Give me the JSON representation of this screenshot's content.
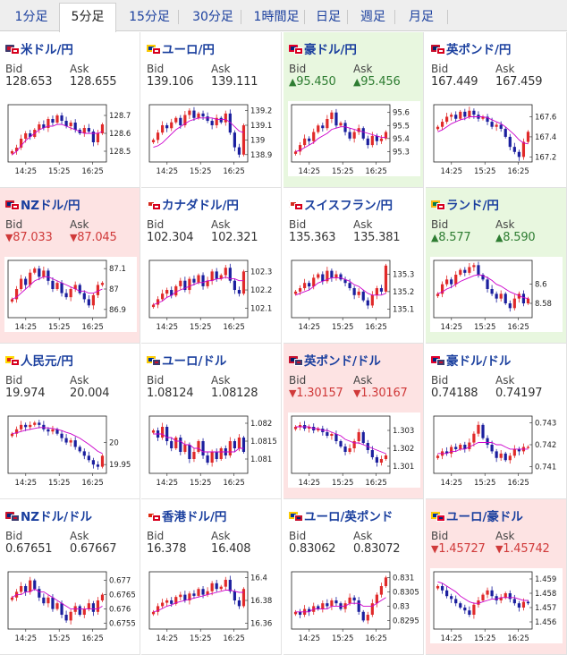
{
  "tabs": [
    {
      "label": "1分足",
      "active": false
    },
    {
      "label": "5分足",
      "active": true
    },
    {
      "label": "15分足",
      "active": false
    },
    {
      "label": "30分足",
      "active": false
    },
    {
      "label": "1時間足",
      "active": false
    },
    {
      "label": "日足",
      "active": false
    },
    {
      "label": "週足",
      "active": false
    },
    {
      "label": "月足",
      "active": false
    }
  ],
  "bid_label": "Bid",
  "ask_label": "Ask",
  "colors": {
    "candle_up": "#e02a2a",
    "candle_down": "#1b1f9e",
    "moving_average": "#cc00cc",
    "text_up": "#2e7d32",
    "text_down": "#d03a3a"
  },
  "chart_data": [
    {
      "type": "candlestick",
      "pair": "米ドル/円",
      "flags": [
        "US",
        "JP"
      ],
      "bid": "128.653",
      "ask": "128.655",
      "trend": "",
      "cell_bg": "",
      "x_ticks": [
        "14:25",
        "15:25",
        "16:25"
      ],
      "y_ticks": [
        "128.7",
        "128.6",
        "128.5"
      ],
      "ylim": [
        128.44,
        128.76
      ],
      "closes": [
        128.5,
        128.52,
        128.57,
        128.6,
        128.58,
        128.62,
        128.65,
        128.63,
        128.68,
        128.66,
        128.7,
        128.67,
        128.64,
        128.66,
        128.62,
        128.6,
        128.63,
        128.61,
        128.55,
        128.6,
        128.65
      ],
      "ma": [
        128.48,
        128.5,
        128.53,
        128.56,
        128.58,
        128.6,
        128.62,
        128.63,
        128.64,
        128.64,
        128.65,
        128.65,
        128.64,
        128.63,
        128.62,
        128.61,
        128.6,
        128.6,
        128.6,
        128.6,
        128.61
      ]
    },
    {
      "type": "candlestick",
      "pair": "ユーロ/円",
      "flags": [
        "EU",
        "JP"
      ],
      "bid": "139.106",
      "ask": "139.111",
      "trend": "",
      "cell_bg": "",
      "x_ticks": [
        "14:25",
        "15:25",
        "16:25"
      ],
      "y_ticks": [
        "139.2",
        "139.1",
        "139",
        "138.9"
      ],
      "ylim": [
        138.85,
        139.24
      ],
      "closes": [
        139.0,
        139.05,
        139.1,
        139.08,
        139.12,
        139.15,
        139.1,
        139.17,
        139.2,
        139.15,
        139.18,
        139.16,
        139.13,
        139.1,
        139.15,
        139.12,
        139.18,
        139.05,
        138.95,
        138.9,
        139.1
      ],
      "ma": [
        138.95,
        138.96,
        138.98,
        139.01,
        139.04,
        139.07,
        139.09,
        139.11,
        139.13,
        139.14,
        139.15,
        139.15,
        139.15,
        139.15,
        139.14,
        139.14,
        139.14,
        139.12,
        139.09,
        139.06,
        139.05
      ]
    },
    {
      "type": "candlestick",
      "pair": "豪ドル/円",
      "flags": [
        "AU",
        "JP"
      ],
      "bid": "95.450",
      "ask": "95.456",
      "trend": "up",
      "cell_bg": "green",
      "x_ticks": [
        "14:25",
        "15:25",
        "16:25"
      ],
      "y_ticks": [
        "95.6",
        "95.5",
        "95.4",
        "95.3"
      ],
      "ylim": [
        95.22,
        95.66
      ],
      "closes": [
        95.3,
        95.35,
        95.4,
        95.38,
        95.45,
        95.5,
        95.48,
        95.55,
        95.6,
        95.5,
        95.52,
        95.45,
        95.4,
        95.45,
        95.48,
        95.4,
        95.35,
        95.42,
        95.38,
        95.4,
        95.45
      ],
      "ma": [
        95.3,
        95.31,
        95.33,
        95.35,
        95.37,
        95.4,
        95.42,
        95.44,
        95.47,
        95.48,
        95.49,
        95.49,
        95.48,
        95.47,
        95.46,
        95.45,
        95.44,
        95.43,
        95.42,
        95.41,
        95.41
      ]
    },
    {
      "type": "candlestick",
      "pair": "英ポンド/円",
      "flags": [
        "GB",
        "JP"
      ],
      "bid": "167.449",
      "ask": "167.459",
      "trend": "",
      "cell_bg": "",
      "x_ticks": [
        "14:25",
        "15:25",
        "16:25"
      ],
      "y_ticks": [
        "167.6",
        "167.4",
        "167.2"
      ],
      "ylim": [
        167.15,
        167.72
      ],
      "closes": [
        167.5,
        167.55,
        167.6,
        167.62,
        167.58,
        167.65,
        167.6,
        167.66,
        167.62,
        167.58,
        167.6,
        167.55,
        167.5,
        167.52,
        167.48,
        167.4,
        167.3,
        167.25,
        167.2,
        167.35,
        167.45
      ],
      "ma": [
        167.45,
        167.47,
        167.5,
        167.53,
        167.55,
        167.57,
        167.58,
        167.6,
        167.6,
        167.6,
        167.6,
        167.59,
        167.57,
        167.55,
        167.53,
        167.5,
        167.46,
        167.42,
        167.37,
        167.34,
        167.33
      ]
    },
    {
      "type": "candlestick",
      "pair": "NZドル/円",
      "flags": [
        "NZ",
        "JP"
      ],
      "bid": "87.033",
      "ask": "87.045",
      "trend": "down",
      "cell_bg": "red",
      "x_ticks": [
        "14:25",
        "15:25",
        "16:25"
      ],
      "y_ticks": [
        "87.1",
        "87",
        "86.9"
      ],
      "ylim": [
        86.86,
        87.14
      ],
      "closes": [
        86.95,
        87.0,
        87.05,
        87.02,
        87.08,
        87.1,
        87.06,
        87.09,
        87.04,
        87.0,
        87.03,
        86.98,
        86.96,
        87.0,
        87.02,
        86.98,
        86.95,
        86.92,
        86.97,
        87.02,
        87.03
      ],
      "ma": [
        86.95,
        86.96,
        86.98,
        87.0,
        87.02,
        87.04,
        87.05,
        87.06,
        87.06,
        87.05,
        87.04,
        87.03,
        87.02,
        87.01,
        87.0,
        86.99,
        86.99,
        86.98,
        86.98,
        86.99,
        87.0
      ]
    },
    {
      "type": "candlestick",
      "pair": "カナダドル/円",
      "flags": [
        "CA",
        "JP"
      ],
      "bid": "102.304",
      "ask": "102.321",
      "trend": "",
      "cell_bg": "",
      "x_ticks": [
        "14:25",
        "15:25",
        "16:25"
      ],
      "y_ticks": [
        "102.3",
        "102.2",
        "102.1"
      ],
      "ylim": [
        102.05,
        102.36
      ],
      "closes": [
        102.12,
        102.15,
        102.18,
        102.2,
        102.17,
        102.22,
        102.25,
        102.2,
        102.26,
        102.24,
        102.28,
        102.22,
        102.25,
        102.3,
        102.26,
        102.28,
        102.32,
        102.25,
        102.2,
        102.18,
        102.3
      ],
      "ma": [
        102.12,
        102.13,
        102.14,
        102.16,
        102.17,
        102.19,
        102.2,
        102.21,
        102.22,
        102.23,
        102.24,
        102.24,
        102.25,
        102.25,
        102.26,
        102.26,
        102.27,
        102.26,
        102.26,
        102.25,
        102.25
      ]
    },
    {
      "type": "candlestick",
      "pair": "スイスフラン/円",
      "flags": [
        "CH",
        "JP"
      ],
      "bid": "135.363",
      "ask": "135.381",
      "trend": "",
      "cell_bg": "",
      "x_ticks": [
        "14:25",
        "15:25",
        "16:25"
      ],
      "y_ticks": [
        "135.3",
        "135.2",
        "135.1"
      ],
      "ylim": [
        135.05,
        135.38
      ],
      "closes": [
        135.2,
        135.22,
        135.25,
        135.23,
        135.28,
        135.3,
        135.26,
        135.32,
        135.28,
        135.3,
        135.27,
        135.25,
        135.22,
        135.18,
        135.2,
        135.15,
        135.12,
        135.18,
        135.22,
        135.2,
        135.35
      ],
      "ma": [
        135.18,
        135.19,
        135.2,
        135.21,
        135.23,
        135.25,
        135.26,
        135.27,
        135.28,
        135.28,
        135.28,
        135.27,
        135.26,
        135.24,
        135.23,
        135.21,
        135.19,
        135.18,
        135.18,
        135.18,
        135.19
      ]
    },
    {
      "type": "candlestick",
      "pair": "ランド/円",
      "flags": [
        "ZA",
        "JP"
      ],
      "bid": "8.577",
      "ask": "8.590",
      "trend": "up",
      "cell_bg": "green",
      "x_ticks": [
        "14:25",
        "15:25",
        "16:25"
      ],
      "y_ticks": [
        "8.6",
        "8.58"
      ],
      "ylim": [
        8.565,
        8.625
      ],
      "closes": [
        8.59,
        8.6,
        8.605,
        8.6,
        8.61,
        8.615,
        8.612,
        8.618,
        8.62,
        8.61,
        8.605,
        8.595,
        8.59,
        8.585,
        8.59,
        8.58,
        8.575,
        8.585,
        8.59,
        8.58,
        8.585
      ],
      "ma": [
        8.59,
        8.592,
        8.595,
        8.597,
        8.6,
        8.603,
        8.605,
        8.607,
        8.609,
        8.61,
        8.609,
        8.607,
        8.604,
        8.6,
        8.598,
        8.595,
        8.592,
        8.59,
        8.588,
        8.586,
        8.585
      ]
    },
    {
      "type": "candlestick",
      "pair": "人民元/円",
      "flags": [
        "CN",
        "JP"
      ],
      "bid": "19.974",
      "ask": "20.004",
      "trend": "",
      "cell_bg": "",
      "x_ticks": [
        "14:25",
        "15:25",
        "16:25"
      ],
      "y_ticks": [
        "20",
        "19.95"
      ],
      "ylim": [
        19.93,
        20.06
      ],
      "closes": [
        20.02,
        20.03,
        20.04,
        20.035,
        20.04,
        20.045,
        20.04,
        20.03,
        20.025,
        20.03,
        20.02,
        20.01,
        20.0,
        20.005,
        19.99,
        19.98,
        19.97,
        19.96,
        19.95,
        19.945,
        19.97
      ],
      "ma": [
        20.02,
        20.022,
        20.025,
        20.028,
        20.03,
        20.032,
        20.034,
        20.034,
        20.033,
        20.032,
        20.03,
        20.027,
        20.023,
        20.02,
        20.015,
        20.01,
        20.003,
        19.996,
        19.988,
        19.98,
        19.975
      ]
    },
    {
      "type": "candlestick",
      "pair": "ユーロ/ドル",
      "flags": [
        "EU",
        "US"
      ],
      "bid": "1.08124",
      "ask": "1.08128",
      "trend": "",
      "cell_bg": "",
      "x_ticks": [
        "14:25",
        "15:25",
        "16:25"
      ],
      "y_ticks": [
        "1.082",
        "1.0815",
        "1.081"
      ],
      "ylim": [
        1.0806,
        1.0822
      ],
      "closes": [
        1.0818,
        1.0816,
        1.0819,
        1.0815,
        1.0813,
        1.0816,
        1.0812,
        1.0814,
        1.081,
        1.0812,
        1.0815,
        1.0811,
        1.0809,
        1.0812,
        1.081,
        1.0813,
        1.0811,
        1.0815,
        1.0813,
        1.0816,
        1.0812
      ],
      "ma": [
        1.0817,
        1.0817,
        1.0817,
        1.0816,
        1.0816,
        1.0815,
        1.0815,
        1.0814,
        1.0814,
        1.0813,
        1.0813,
        1.0812,
        1.0812,
        1.0812,
        1.0812,
        1.0812,
        1.0812,
        1.0812,
        1.0812,
        1.0813,
        1.0813
      ]
    },
    {
      "type": "candlestick",
      "pair": "英ポンド/ドル",
      "flags": [
        "GB",
        "US"
      ],
      "bid": "1.30157",
      "ask": "1.30167",
      "trend": "down",
      "cell_bg": "red",
      "x_ticks": [
        "14:25",
        "15:25",
        "16:25"
      ],
      "y_ticks": [
        "1.303",
        "1.302",
        "1.301"
      ],
      "ylim": [
        1.3006,
        1.3038
      ],
      "closes": [
        1.3032,
        1.3033,
        1.3031,
        1.3032,
        1.303,
        1.3031,
        1.3029,
        1.3027,
        1.3028,
        1.3024,
        1.3021,
        1.3018,
        1.302,
        1.3024,
        1.3029,
        1.3023,
        1.3019,
        1.3015,
        1.3012,
        1.3014,
        1.3016
      ],
      "ma": [
        1.3032,
        1.3032,
        1.3032,
        1.3032,
        1.3031,
        1.3031,
        1.303,
        1.303,
        1.3029,
        1.3028,
        1.3027,
        1.3025,
        1.3024,
        1.3023,
        1.3023,
        1.3022,
        1.3021,
        1.302,
        1.3019,
        1.3018,
        1.3017
      ]
    },
    {
      "type": "candlestick",
      "pair": "豪ドル/ドル",
      "flags": [
        "AU",
        "US"
      ],
      "bid": "0.74188",
      "ask": "0.74197",
      "trend": "",
      "cell_bg": "",
      "x_ticks": [
        "14:25",
        "15:25",
        "16:25"
      ],
      "y_ticks": [
        "0.743",
        "0.742",
        "0.741"
      ],
      "ylim": [
        0.7407,
        0.7433
      ],
      "closes": [
        0.7415,
        0.7417,
        0.7416,
        0.7419,
        0.7418,
        0.742,
        0.7418,
        0.7421,
        0.7425,
        0.7429,
        0.7423,
        0.742,
        0.7417,
        0.7414,
        0.7416,
        0.7413,
        0.7415,
        0.7418,
        0.7417,
        0.7419,
        0.7419
      ],
      "ma": [
        0.7416,
        0.7416,
        0.7416,
        0.7417,
        0.7417,
        0.7418,
        0.7418,
        0.7419,
        0.742,
        0.7421,
        0.7421,
        0.7421,
        0.7421,
        0.742,
        0.742,
        0.7419,
        0.7418,
        0.7418,
        0.7418,
        0.7418,
        0.7418
      ]
    },
    {
      "type": "candlestick",
      "pair": "NZドル/ドル",
      "flags": [
        "NZ",
        "US"
      ],
      "bid": "0.67651",
      "ask": "0.67667",
      "trend": "",
      "cell_bg": "",
      "x_ticks": [
        "14:25",
        "15:25",
        "16:25"
      ],
      "y_ticks": [
        "0.677",
        "0.6765",
        "0.676",
        "0.6755"
      ],
      "ylim": [
        0.6753,
        0.6773
      ],
      "closes": [
        0.6764,
        0.6766,
        0.6768,
        0.6766,
        0.677,
        0.6767,
        0.6764,
        0.6762,
        0.6764,
        0.676,
        0.6762,
        0.6758,
        0.6756,
        0.6759,
        0.6761,
        0.6758,
        0.676,
        0.6762,
        0.6759,
        0.6763,
        0.6765
      ],
      "ma": [
        0.6764,
        0.6765,
        0.6765,
        0.6766,
        0.6766,
        0.6767,
        0.6766,
        0.6766,
        0.6765,
        0.6764,
        0.6763,
        0.6762,
        0.6761,
        0.676,
        0.676,
        0.676,
        0.676,
        0.676,
        0.676,
        0.676,
        0.6761
      ]
    },
    {
      "type": "candlestick",
      "pair": "香港ドル/円",
      "flags": [
        "HK",
        "JP"
      ],
      "bid": "16.378",
      "ask": "16.408",
      "trend": "",
      "cell_bg": "",
      "x_ticks": [
        "14:25",
        "15:25",
        "16:25"
      ],
      "y_ticks": [
        "16.4",
        "16.38",
        "16.36"
      ],
      "ylim": [
        16.355,
        16.405
      ],
      "closes": [
        16.37,
        16.375,
        16.378,
        16.38,
        16.377,
        16.383,
        16.385,
        16.38,
        16.386,
        16.384,
        16.39,
        16.385,
        16.388,
        16.395,
        16.39,
        16.392,
        16.398,
        16.388,
        16.38,
        16.375,
        16.39
      ],
      "ma": [
        16.37,
        16.371,
        16.373,
        16.375,
        16.376,
        16.378,
        16.379,
        16.38,
        16.381,
        16.382,
        16.383,
        16.384,
        16.385,
        16.386,
        16.387,
        16.388,
        16.389,
        16.389,
        16.388,
        16.387,
        16.387
      ]
    },
    {
      "type": "candlestick",
      "pair": "ユーロ/英ポンド",
      "flags": [
        "EU",
        "GB"
      ],
      "bid": "0.83062",
      "ask": "0.83072",
      "trend": "",
      "cell_bg": "",
      "x_ticks": [
        "14:25",
        "15:25",
        "16:25"
      ],
      "y_ticks": [
        "0.831",
        "0.8305",
        "0.83",
        "0.8295"
      ],
      "ylim": [
        0.8292,
        0.8312
      ],
      "closes": [
        0.8298,
        0.8297,
        0.8299,
        0.8298,
        0.83,
        0.8299,
        0.8301,
        0.83,
        0.8302,
        0.8301,
        0.8299,
        0.8301,
        0.8303,
        0.8302,
        0.8298,
        0.8295,
        0.8297,
        0.8301,
        0.8304,
        0.8307,
        0.831
      ],
      "ma": [
        0.8298,
        0.8298,
        0.8298,
        0.8298,
        0.8299,
        0.8299,
        0.8299,
        0.8299,
        0.83,
        0.83,
        0.83,
        0.83,
        0.8301,
        0.8301,
        0.8301,
        0.83,
        0.83,
        0.83,
        0.8301,
        0.8302,
        0.8303
      ]
    },
    {
      "type": "candlestick",
      "pair": "ユーロ/豪ドル",
      "flags": [
        "EU",
        "AU"
      ],
      "bid": "1.45727",
      "ask": "1.45742",
      "trend": "down",
      "cell_bg": "red",
      "x_ticks": [
        "14:25",
        "15:25",
        "16:25"
      ],
      "y_ticks": [
        "1.459",
        "1.458",
        "1.457",
        "1.456"
      ],
      "ylim": [
        1.4555,
        1.4595
      ],
      "closes": [
        1.4585,
        1.4582,
        1.4578,
        1.4576,
        1.4573,
        1.457,
        1.4568,
        1.4565,
        1.4572,
        1.4575,
        1.4579,
        1.4582,
        1.4578,
        1.4575,
        1.4577,
        1.458,
        1.4576,
        1.4573,
        1.457,
        1.4574,
        1.4573
      ],
      "ma": [
        1.4588,
        1.4587,
        1.4585,
        1.4583,
        1.4581,
        1.4578,
        1.4576,
        1.4574,
        1.4573,
        1.4573,
        1.4574,
        1.4575,
        1.4576,
        1.4576,
        1.4577,
        1.4577,
        1.4577,
        1.4577,
        1.4576,
        1.4575,
        1.4575
      ]
    }
  ]
}
